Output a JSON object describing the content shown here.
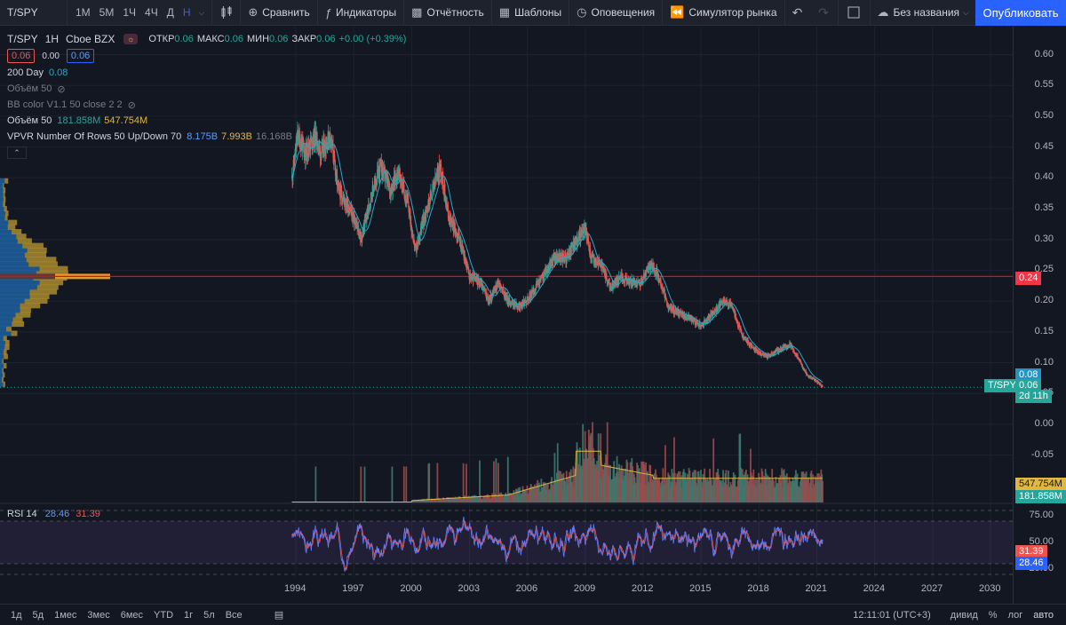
{
  "toolbar": {
    "symbol": "T/SPY",
    "intervals": [
      "1M",
      "5M",
      "1Ч",
      "4Ч",
      "Д",
      "Н"
    ],
    "active_interval": "Н",
    "compare": "Сравнить",
    "indicators": "Индикаторы",
    "financials": "Отчётность",
    "templates": "Шаблоны",
    "alerts": "Оповещения",
    "replay": "Симулятор рынка",
    "layout_name": "Без названия",
    "publish": "Опубликовать"
  },
  "legend": {
    "title": "T/SPY · 1H · Cboe BZX",
    "sym": "T/SPY",
    "interval": "1H",
    "exchange": "Cboe BZX",
    "open_label": "ОТКР",
    "open": "0.06",
    "high_label": "МАКС",
    "high": "0.06",
    "low_label": "МИН",
    "low": "0.06",
    "close_label": "ЗАКР",
    "close": "0.06",
    "change": "+0.00 (+0.39%)",
    "sell": "0.06",
    "spread": "0.00",
    "buy": "0.06",
    "ma_label": "200 Day",
    "ma_value": "0.08",
    "vol_hidden": "Объём 50",
    "bb_hidden": "BB color V1.1 50 close 2 2",
    "vol_label": "Объём 50",
    "vol_a": "181.858M",
    "vol_b": "547.754M",
    "vpvr_label": "VPVR Number Of Rows 50 Up/Down 70",
    "vpvr_a": "8.175B",
    "vpvr_b": "7.993B",
    "vpvr_c": "16.168B",
    "rsi_label": "RSI 14",
    "rsi_a": "28.46",
    "rsi_b": "31.39"
  },
  "price_axis": [
    "0.60",
    "0.55",
    "0.50",
    "0.45",
    "0.40",
    "0.35",
    "0.30",
    "0.25",
    "0.20",
    "0.15",
    "0.10",
    "0.05",
    "0.00",
    "-0.05"
  ],
  "tags": {
    "line_price": "0.24",
    "ma": "0.08",
    "symbol": "T/SPY",
    "last": "0.06",
    "countdown": "2d 11h",
    "vol_b": "547.754M",
    "vol_a": "181.858M",
    "rsi_b": "31.39",
    "rsi_a": "28.46"
  },
  "rsi_axis": [
    "75.00",
    "50.00",
    "25.00"
  ],
  "time_axis": [
    "1994",
    "1997",
    "2000",
    "2003",
    "2006",
    "2009",
    "2012",
    "2015",
    "2018",
    "2021",
    "2024",
    "2027",
    "2030"
  ],
  "bottom": {
    "ranges": [
      "1д",
      "5д",
      "1мес",
      "3мес",
      "6мес",
      "YTD",
      "1г",
      "5л",
      "Все"
    ],
    "clock": "12:11:01 (UTC+3)",
    "adj": "дивид",
    "pct": "%",
    "log": "лог",
    "auto": "авто"
  },
  "colors": {
    "bg": "#131722",
    "up": "#26a69a",
    "down": "#ef5350",
    "ma": "#2aa8c8",
    "hline": "#ff0000",
    "volma": "#e0b740",
    "rsi": "#5b7cff"
  }
}
